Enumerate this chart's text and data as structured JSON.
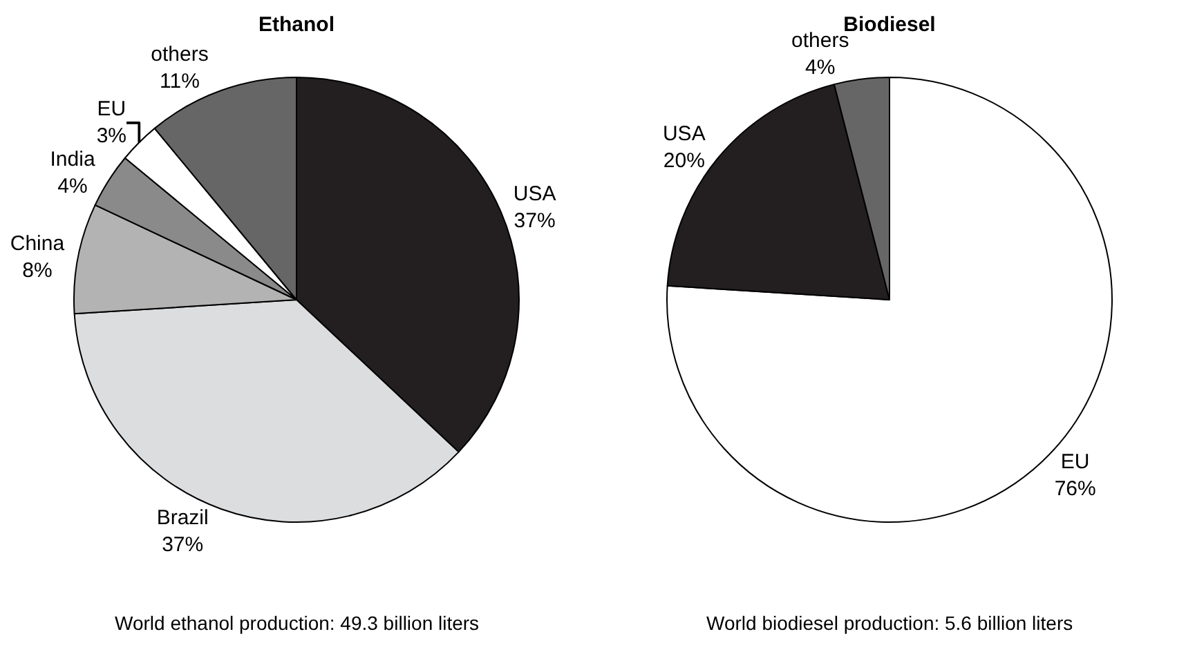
{
  "chart_data": [
    {
      "type": "pie",
      "title": "Ethanol",
      "categories": [
        "USA",
        "Brazil",
        "China",
        "India",
        "EU",
        "others"
      ],
      "values": [
        37,
        37,
        8,
        4,
        3,
        11
      ],
      "value_labels": [
        "37%",
        "37%",
        "8%",
        "4%",
        "3%",
        "11%"
      ],
      "colors": [
        "#231f20",
        "#dcdddf",
        "#b3b3b3",
        "#8a8a8a",
        "#ffffff",
        "#666666"
      ],
      "annotations": [
        "World ethanol production: 49.3 billion liters"
      ],
      "legend": false
    },
    {
      "type": "pie",
      "title": "Biodiesel",
      "categories": [
        "EU",
        "USA",
        "others"
      ],
      "values": [
        76,
        20,
        4
      ],
      "value_labels": [
        "76%",
        "20%",
        "4%"
      ],
      "colors": [
        "#ffffff",
        "#231f20",
        "#666666"
      ],
      "annotations": [
        "World biodiesel production: 5.6 billion liters"
      ],
      "legend": false
    }
  ]
}
